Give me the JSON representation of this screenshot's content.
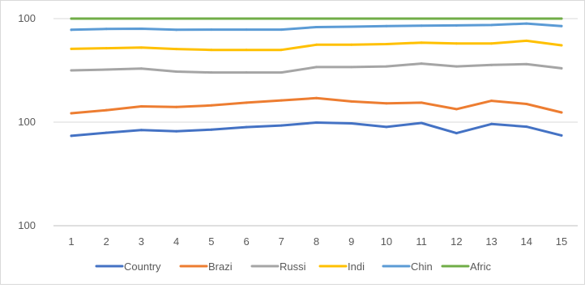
{
  "chart_data": {
    "type": "line",
    "title": "",
    "xlabel": "",
    "ylabel": "",
    "categories": [
      "1",
      "2",
      "3",
      "4",
      "5",
      "6",
      "7",
      "8",
      "9",
      "10",
      "11",
      "12",
      "13",
      "14",
      "15"
    ],
    "y_tick_labels": [
      "100",
      "100",
      "100"
    ],
    "ylim": [
      0,
      100
    ],
    "grid": true,
    "legend_position": "bottom",
    "series": [
      {
        "name": "Country",
        "color": "#4472C4",
        "values": [
          43.4,
          44.9,
          46.2,
          45.6,
          46.4,
          47.6,
          48.4,
          49.8,
          49.4,
          47.7,
          49.6,
          44.7,
          49.1,
          47.8,
          43.6
        ]
      },
      {
        "name": "Brazi",
        "color": "#ED7D31",
        "values": [
          54.3,
          55.8,
          57.6,
          57.3,
          58.1,
          59.4,
          60.5,
          61.6,
          60.0,
          59.1,
          59.4,
          56.3,
          60.3,
          58.8,
          54.7
        ]
      },
      {
        "name": "Russi",
        "color": "#A5A5A5",
        "values": [
          75.0,
          75.4,
          75.9,
          74.4,
          74.0,
          74.0,
          74.0,
          76.6,
          76.6,
          76.9,
          78.3,
          76.9,
          77.6,
          78.0,
          76.0
        ]
      },
      {
        "name": "Indi",
        "color": "#FFC000",
        "values": [
          85.4,
          85.7,
          86.0,
          85.3,
          84.9,
          84.9,
          84.9,
          87.4,
          87.4,
          87.7,
          88.4,
          88.0,
          88.0,
          89.3,
          87.1
        ]
      },
      {
        "name": "Chin",
        "color": "#5B9BD5",
        "values": [
          94.6,
          95.0,
          95.1,
          94.6,
          94.7,
          94.7,
          94.7,
          95.9,
          96.1,
          96.4,
          96.6,
          96.7,
          96.9,
          97.6,
          96.4
        ]
      },
      {
        "name": "Afric",
        "color": "#70AD47",
        "values": [
          100,
          100,
          100,
          100,
          100,
          100,
          100,
          100,
          100,
          100,
          100,
          100,
          100,
          100,
          100
        ]
      }
    ]
  }
}
